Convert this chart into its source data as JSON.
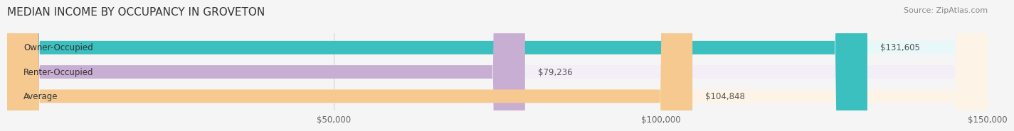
{
  "title": "MEDIAN INCOME BY OCCUPANCY IN GROVETON",
  "source": "Source: ZipAtlas.com",
  "categories": [
    "Owner-Occupied",
    "Renter-Occupied",
    "Average"
  ],
  "values": [
    131605,
    79236,
    104848
  ],
  "labels": [
    "$131,605",
    "$79,236",
    "$104,848"
  ],
  "bar_colors": [
    "#3bbfbf",
    "#c9aed4",
    "#f5c990"
  ],
  "bar_bg_colors": [
    "#e8f8f8",
    "#f3eef7",
    "#fdf3e7"
  ],
  "xlim": [
    0,
    150000
  ],
  "xticks": [
    0,
    50000,
    100000,
    150000
  ],
  "xticklabels": [
    "",
    "$50,000",
    "$100,000",
    "$150,000"
  ],
  "title_fontsize": 11,
  "source_fontsize": 8,
  "label_fontsize": 8.5,
  "bar_label_fontsize": 8.5,
  "category_fontsize": 8.5,
  "background_color": "#f5f5f5",
  "bar_height": 0.55
}
